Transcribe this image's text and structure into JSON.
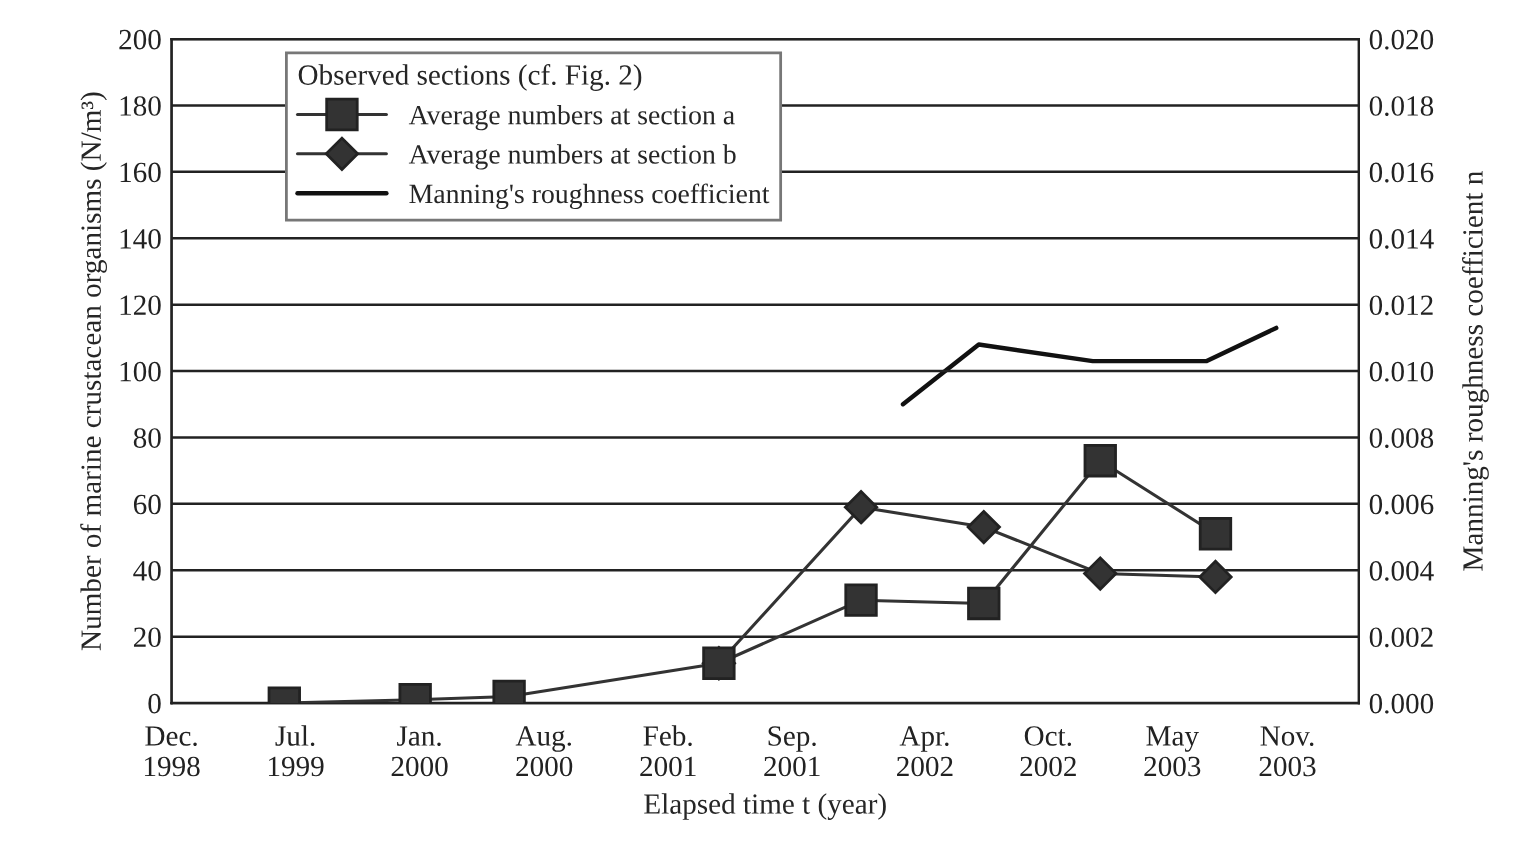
{
  "chart_data": {
    "type": "line",
    "xlabel": "Elapsed time t (year)",
    "ylabel": "Number of marine crustacean organisms (N/m³)",
    "y2label": "Manning's roughness coefficient n",
    "legend_title": "Observed sections (cf. Fig. 2)",
    "legend": "top left",
    "grid": "y",
    "xlim": [
      "1998-12-15",
      "2004-02-23"
    ],
    "xticks": [
      {
        "value": "1998-12-15",
        "label": "Dec.\n1998"
      },
      {
        "value": "1999-07-01",
        "label": "Jul.\n1999"
      },
      {
        "value": "2000-01-15",
        "label": "Jan.\n2000"
      },
      {
        "value": "2000-08-01",
        "label": "Aug.\n2000"
      },
      {
        "value": "2001-02-15",
        "label": "Feb.\n2001"
      },
      {
        "value": "2001-09-01",
        "label": "Sep.\n2001"
      },
      {
        "value": "2002-04-01",
        "label": "Apr.\n2002"
      },
      {
        "value": "2002-10-15",
        "label": "Oct.\n2002"
      },
      {
        "value": "2003-05-01",
        "label": "May\n2003"
      },
      {
        "value": "2003-11-01",
        "label": "Nov.\n2003"
      }
    ],
    "ylim": [
      0,
      200
    ],
    "yticks": [
      0,
      20,
      40,
      60,
      80,
      100,
      120,
      140,
      160,
      180,
      200
    ],
    "y2lim": [
      0,
      0.02
    ],
    "y2ticks": [
      {
        "value": 0,
        "label": "0.000"
      },
      {
        "value": 0.002,
        "label": "0.002"
      },
      {
        "value": 0.004,
        "label": "0.004"
      },
      {
        "value": 0.006,
        "label": "0.006"
      },
      {
        "value": 0.008,
        "label": "0.008"
      },
      {
        "value": 0.01,
        "label": "0.010"
      },
      {
        "value": 0.012,
        "label": "0.012"
      },
      {
        "value": 0.014,
        "label": "0.014"
      },
      {
        "value": 0.016,
        "label": "0.016"
      },
      {
        "value": 0.018,
        "label": "0.018"
      },
      {
        "value": 0.02,
        "label": "0.020"
      }
    ],
    "series": [
      {
        "name": "Average numbers at section b",
        "color": "#333333",
        "marker": "diamond",
        "x": [
          "2001-05-07",
          "2001-12-20",
          "2002-07-04",
          "2003-01-06",
          "2003-07-09"
        ],
        "values": [
          12,
          59,
          53,
          39,
          38
        ]
      },
      {
        "name": "Average numbers at section a",
        "color": "#333333",
        "marker": "square",
        "x": [
          "1999-06-13",
          "2000-01-08",
          "2000-06-06",
          "2001-05-07",
          "2001-12-20",
          "2002-07-04",
          "2003-01-06",
          "2003-07-09"
        ],
        "values": [
          0,
          1,
          2,
          12,
          31,
          30,
          73,
          51
        ]
      },
      {
        "name": "Manning's roughness coefficient",
        "color": "#111111",
        "marker": "none",
        "axis": "y2",
        "x": [
          "2002-02-25",
          "2002-06-26",
          "2002-12-25",
          "2003-06-25",
          "2003-10-14"
        ],
        "values": [
          0.009,
          0.0108,
          0.0103,
          0.0103,
          0.0113
        ]
      }
    ]
  }
}
